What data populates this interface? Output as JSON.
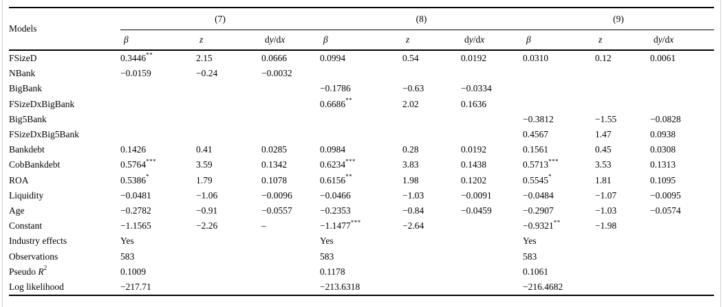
{
  "colors": {
    "background": "#ffffff",
    "text": "#000000",
    "rule": "#000000"
  },
  "table": {
    "corner_label": "Models",
    "groups": [
      {
        "label": "(7)"
      },
      {
        "label": "(8)"
      },
      {
        "label": "(9)"
      }
    ],
    "col_headers": {
      "beta": "β",
      "z": "z",
      "dydx": {
        "d1": "d",
        "y": "y",
        "slash": "/",
        "d2": "d",
        "x": "x"
      }
    },
    "rows": [
      {
        "label": "FSizeD",
        "cells": [
          {
            "v": "0.3446",
            "sup": "**"
          },
          "2.15",
          "0.0666",
          "0.0994",
          "0.54",
          "0.0192",
          "0.0310",
          "0.12",
          "0.0061"
        ]
      },
      {
        "label": "NBank",
        "cells": [
          "−0.0159",
          "−0.24",
          "−0.0032",
          "",
          "",
          "",
          "",
          "",
          ""
        ]
      },
      {
        "label": "BigBank",
        "cells": [
          "",
          "",
          "",
          "−0.1786",
          "−0.63",
          "−0.0334",
          "",
          "",
          ""
        ]
      },
      {
        "label": "FSizeDxBigBank",
        "cells": [
          "",
          "",
          "",
          {
            "v": "0.6686",
            "sup": "**"
          },
          "2.02",
          "0.1636",
          "",
          "",
          ""
        ]
      },
      {
        "label": "Big5Bank",
        "cells": [
          "",
          "",
          "",
          "",
          "",
          "",
          "−0.3812",
          "−1.55",
          "−0.0828"
        ]
      },
      {
        "label": "FSizeDxBig5Bank",
        "cells": [
          "",
          "",
          "",
          "",
          "",
          "",
          "0.4567",
          "1.47",
          "0.0938"
        ]
      },
      {
        "label": "Bankdebt",
        "cells": [
          "0.1426",
          "0.41",
          "0.0285",
          "0.0984",
          "0.28",
          "0.0192",
          "0.1561",
          "0.45",
          "0.0308"
        ]
      },
      {
        "label": "CobBankdebt",
        "cells": [
          {
            "v": "0.5764",
            "sup": "***"
          },
          "3.59",
          "0.1342",
          {
            "v": "0.6234",
            "sup": "***"
          },
          "3.83",
          "0.1438",
          {
            "v": "0.5713",
            "sup": "***"
          },
          "3.53",
          "0.1313"
        ]
      },
      {
        "label": "ROA",
        "cells": [
          {
            "v": "0.5386",
            "sup": "*"
          },
          "1.79",
          "0.1078",
          {
            "v": "0.6156",
            "sup": "**"
          },
          "1.98",
          "0.1202",
          {
            "v": "0.5545",
            "sup": "*"
          },
          "1.81",
          "0.1095"
        ]
      },
      {
        "label": "Liquidity",
        "cells": [
          "−0.0481",
          "−1.06",
          "−0.0096",
          "−0.0466",
          "−1.03",
          "−0.0091",
          "−0.0484",
          "−1.07",
          "−0.0095"
        ]
      },
      {
        "label": "Age",
        "cells": [
          "−0.2782",
          "−0.91",
          "−0.0557",
          "−0.2353",
          "−0.84",
          "−0.0459",
          "−0.2907",
          "−1.03",
          "−0.0574"
        ]
      },
      {
        "label": "Constant",
        "cells": [
          "−1.1565",
          "−2.26",
          "–",
          {
            "v": "−1.1477",
            "sup": "***"
          },
          "−2.64",
          "",
          {
            "v": "−0.9321",
            "sup": "**"
          },
          "−1.98",
          ""
        ]
      },
      {
        "label": "Industry effects",
        "stats": [
          "Yes",
          "Yes",
          "Yes"
        ]
      },
      {
        "label": "Observations",
        "stats": [
          "583",
          "583",
          "583"
        ]
      },
      {
        "label_parts": [
          {
            "t": "Pseudo "
          },
          {
            "t": "R",
            "i": true
          },
          {
            "t": "2",
            "s": true
          }
        ],
        "stats": [
          "0.1009",
          "0.1178",
          "0.1061"
        ]
      },
      {
        "label": "Log likelihood",
        "stats": [
          "−217.71",
          "−213.6318",
          "−216.4682"
        ]
      }
    ]
  }
}
